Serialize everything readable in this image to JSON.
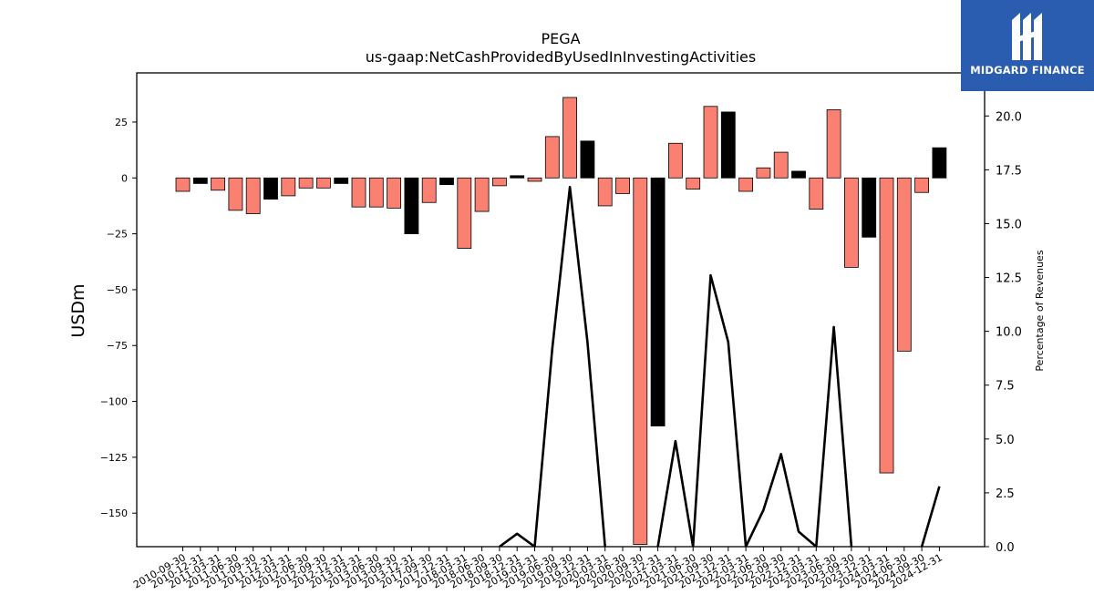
{
  "chart_data": {
    "type": "bar",
    "title": "PEGA",
    "subtitle": "us-gaap:NetCashProvidedByUsedInInvestingActivities",
    "ylabel": "USDm",
    "y2label": "Percentage of Revenues",
    "ylim": [
      -165,
      47
    ],
    "y2lim": [
      0,
      22
    ],
    "yticks": [
      25,
      0,
      -25,
      -50,
      -75,
      -100,
      -125,
      -150
    ],
    "y2ticks": [
      "0.0",
      "2.5",
      "5.0",
      "7.5",
      "10.0",
      "12.5",
      "15.0",
      "17.5",
      "20.0"
    ],
    "categories": [
      "2010-09-30",
      "2010-12-31",
      "2011-03-31",
      "2011-06-30",
      "2011-09-30",
      "2011-12-31",
      "2012-03-31",
      "2012-06-30",
      "2012-09-30",
      "2012-12-31",
      "2013-03-31",
      "2013-06-30",
      "2013-09-30",
      "2013-12-31",
      "2017-09-30",
      "2017-12-31",
      "2018-03-31",
      "2018-06-30",
      "2018-09-30",
      "2018-12-31",
      "2019-03-31",
      "2019-06-30",
      "2019-09-30",
      "2019-12-31",
      "2020-03-31",
      "2020-06-30",
      "2020-09-30",
      "2020-12-31",
      "2021-03-31",
      "2021-06-30",
      "2021-09-30",
      "2021-12-31",
      "2022-03-31",
      "2022-06-30",
      "2022-09-30",
      "2022-12-31",
      "2023-03-31",
      "2023-06-30",
      "2023-09-30",
      "2023-12-31",
      "2024-03-31",
      "2024-06-30",
      "2024-09-30",
      "2024-12-31"
    ],
    "series": [
      {
        "values": [
          -6,
          -2.5,
          -5.5,
          -14.5,
          -16,
          -9.5,
          -8,
          -4.5,
          -4.5,
          -2.5,
          -13,
          -13,
          -13.5,
          -25,
          -11,
          -3,
          -31.5,
          -15,
          -3.5,
          1,
          -1.5,
          18.5,
          36,
          16.5,
          -12.5,
          -7,
          -164,
          -111,
          15.5,
          -5,
          32,
          29.5,
          -6,
          4.5,
          11.5,
          3,
          -14,
          30.5,
          -40,
          -26.5,
          -132,
          -77.5,
          -6.5,
          13.5
        ]
      },
      {
        "values": [
          null,
          null,
          null,
          null,
          null,
          null,
          null,
          null,
          null,
          null,
          null,
          null,
          null,
          null,
          null,
          null,
          null,
          null,
          0,
          0.6,
          0,
          9.2,
          16.7,
          9.5,
          0,
          null,
          null,
          0,
          4.9,
          0,
          12.6,
          9.5,
          0,
          1.7,
          4.3,
          0.7,
          0,
          10.2,
          0,
          null,
          null,
          null,
          0,
          2.8
        ]
      }
    ],
    "bar_colors": [
      "#fa8072",
      "#000000",
      "#fa8072",
      "#fa8072",
      "#fa8072",
      "#000000",
      "#fa8072",
      "#fa8072",
      "#fa8072",
      "#000000",
      "#fa8072",
      "#fa8072",
      "#fa8072",
      "#000000",
      "#fa8072",
      "#000000",
      "#fa8072",
      "#fa8072",
      "#fa8072",
      "#000000",
      "#fa8072",
      "#fa8072",
      "#fa8072",
      "#000000",
      "#fa8072",
      "#fa8072",
      "#fa8072",
      "#000000",
      "#fa8072",
      "#fa8072",
      "#fa8072",
      "#000000",
      "#fa8072",
      "#fa8072",
      "#fa8072",
      "#000000",
      "#fa8072",
      "#fa8072",
      "#fa8072",
      "#000000",
      "#fa8072",
      "#fa8072",
      "#fa8072",
      "#000000"
    ],
    "line_color": "#000000",
    "grid": false
  },
  "logo": {
    "text": "MIDGARD FINANCE",
    "background": "#2a5db0"
  }
}
